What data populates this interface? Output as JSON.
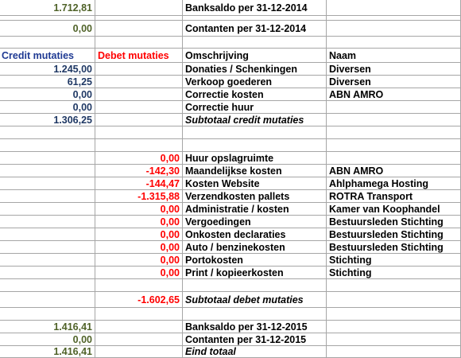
{
  "header_rows": [
    {
      "credit": "1.712,81",
      "debet": "",
      "omschrijving": "Banksaldo per 31-12-2014",
      "naam": ""
    },
    {
      "credit": "0,00",
      "debet": "",
      "omschrijving": "Contanten per 31-12-2014",
      "naam": ""
    }
  ],
  "columns": {
    "credit": "Credit mutaties",
    "debet": "Debet mutaties",
    "omschrijving": "Omschrijving",
    "naam": "Naam"
  },
  "credit_rows": [
    {
      "credit": "1.245,00",
      "omschrijving": "Donaties / Schenkingen",
      "naam": "Diversen"
    },
    {
      "credit": "61,25",
      "omschrijving": "Verkoop goederen",
      "naam": "Diversen"
    },
    {
      "credit": "0,00",
      "omschrijving": "Correctie kosten",
      "naam": "ABN AMRO"
    },
    {
      "credit": "0,00",
      "omschrijving": "Correctie huur",
      "naam": ""
    }
  ],
  "credit_subtotal": {
    "credit": "1.306,25",
    "omschrijving": "Subtotaal credit mutaties"
  },
  "debet_rows": [
    {
      "debet": "0,00",
      "omschrijving": "Huur opslagruimte",
      "naam": ""
    },
    {
      "debet": "-142,30",
      "omschrijving": "Maandelijkse kosten",
      "naam": "ABN AMRO"
    },
    {
      "debet": "-144,47",
      "omschrijving": "Kosten Website",
      "naam": "Ahlphamega Hosting"
    },
    {
      "debet": "-1.315,88",
      "omschrijving": "Verzendkosten  pallets",
      "naam": "ROTRA Transport"
    },
    {
      "debet": "0,00",
      "omschrijving": "Administratie / kosten",
      "naam": "Kamer van Koophandel"
    },
    {
      "debet": "0,00",
      "omschrijving": "Vergoedingen",
      "naam": "Bestuursleden Stichting"
    },
    {
      "debet": "0,00",
      "omschrijving": "Onkosten declaraties",
      "naam": "Bestuursleden Stichting"
    },
    {
      "debet": "0,00",
      "omschrijving": "Auto / benzinekosten",
      "naam": "Bestuursleden Stichting"
    },
    {
      "debet": "0,00",
      "omschrijving": "Portokosten",
      "naam": "Stichting"
    },
    {
      "debet": "0,00",
      "omschrijving": "Print / kopieerkosten",
      "naam": "Stichting"
    }
  ],
  "debet_subtotal": {
    "debet": "-1.602,65",
    "omschrijving": "Subtotaal debet mutaties"
  },
  "footer_rows": [
    {
      "credit": "1.416,41",
      "omschrijving": "Banksaldo per 31-12-2015",
      "naam": ""
    },
    {
      "credit": "0,00",
      "omschrijving": "Contanten per 31-12-2015",
      "naam": ""
    },
    {
      "credit": "1.416,41",
      "omschrijving": "Eind totaal",
      "naam": ""
    }
  ],
  "colors": {
    "credit_text": "#1f3864",
    "debet_text": "#ff0000",
    "balance_text": "#4f6228",
    "grid_line": "#a6a6a6"
  }
}
